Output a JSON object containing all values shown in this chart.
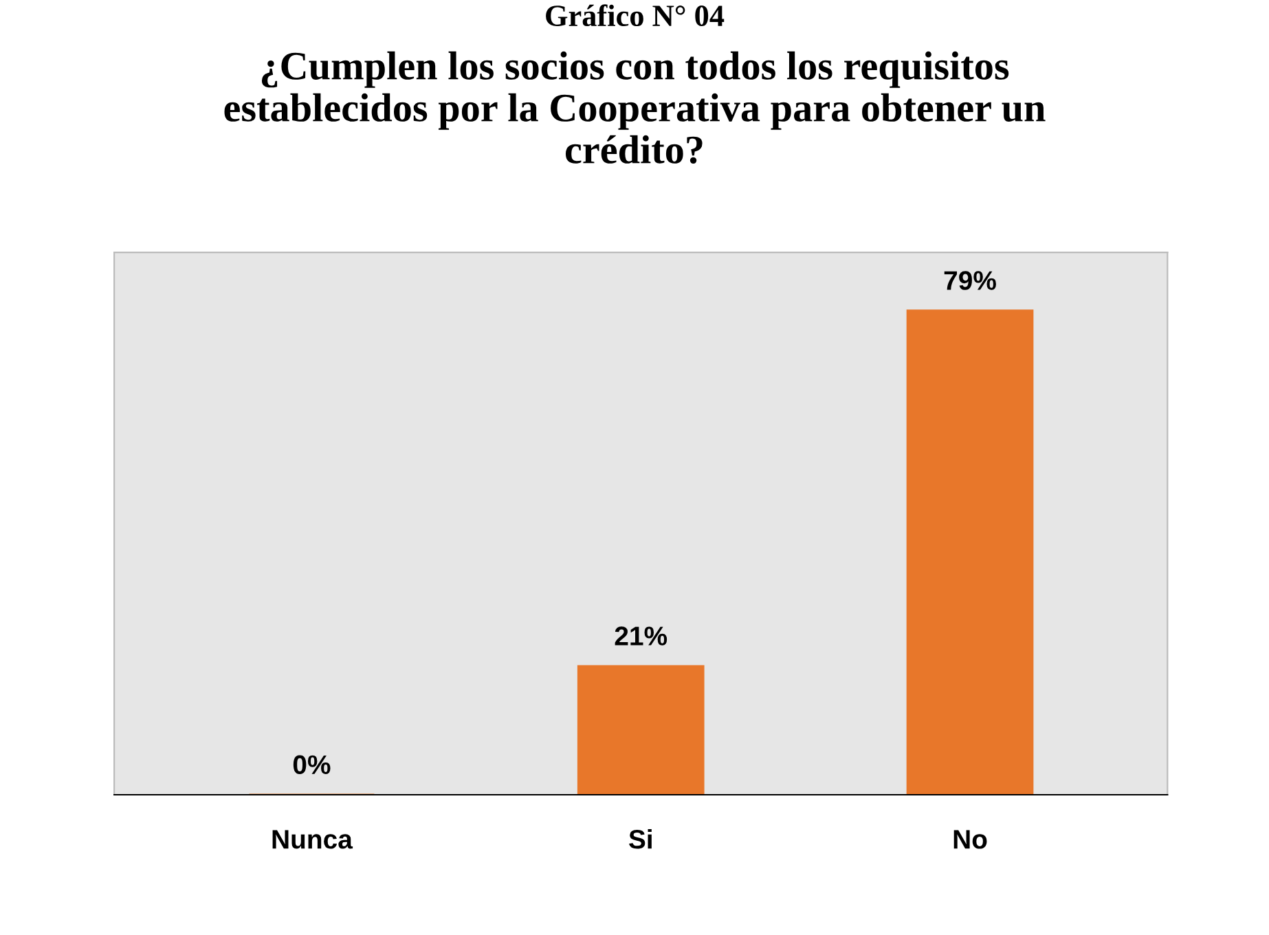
{
  "chart_data": {
    "type": "bar",
    "title": "¿Cumplen los socios con todos los requisitos\nestablecidos por la Cooperativa para obtener un\ncrédito?",
    "annotations": [
      "Gráfico N° 04"
    ],
    "categories": [
      "Nunca",
      "Si",
      "No"
    ],
    "values": [
      0,
      21,
      79
    ],
    "value_labels": [
      "0%",
      "21%",
      "79%"
    ],
    "color": "#e8772a",
    "grid": false,
    "legend": false
  }
}
